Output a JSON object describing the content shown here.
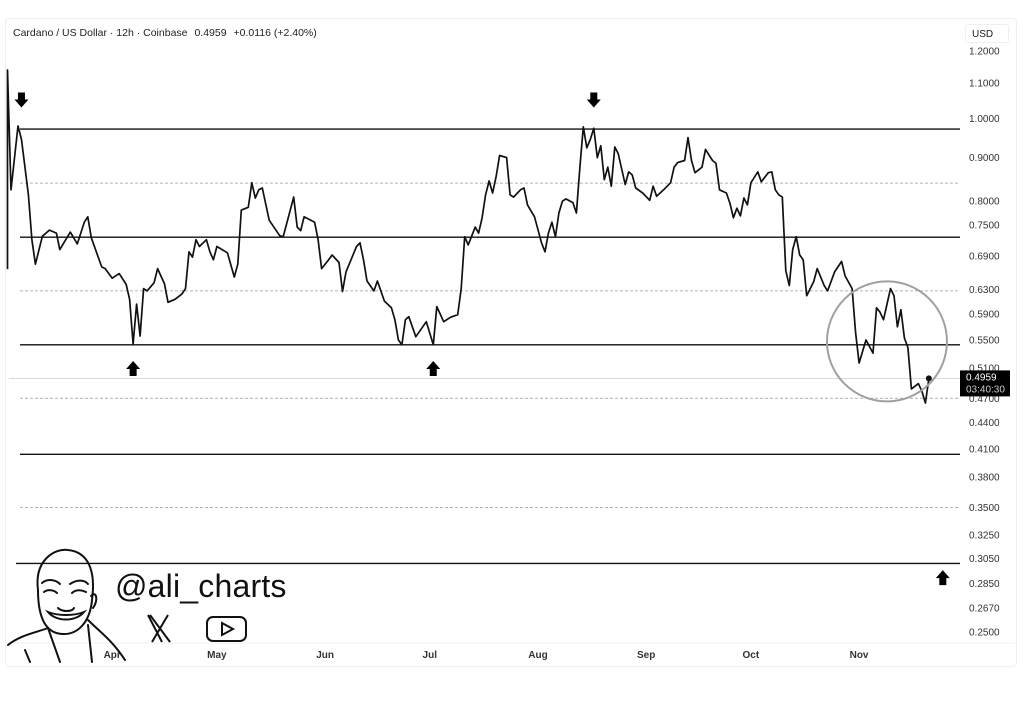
{
  "header": {
    "symbol": "Cardano / US Dollar · 12h · Coinbase",
    "last": "0.4959",
    "change": "+0.0116 (+2.40%)",
    "currency": "USD"
  },
  "price_label": {
    "price": "0.4959",
    "countdown": "03:40:30"
  },
  "watermark": {
    "handle": "@ali_charts",
    "icons": [
      "x-logo-icon",
      "youtube-icon"
    ]
  },
  "colors": {
    "line": "#111111",
    "level": "#111111",
    "dashed": "#9a9a9a",
    "circle": "#a0a0a0",
    "price_box": "#000000"
  },
  "chart_data": {
    "type": "line",
    "title": "",
    "xlabel": "",
    "ylabel": "",
    "yscale": "log",
    "ylim": [
      0.25,
      1.2
    ],
    "grid": false,
    "x_ticks": [
      "Apr",
      "May",
      "Jun",
      "Jul",
      "Aug",
      "Sep",
      "Oct",
      "Nov"
    ],
    "y_ticks": [
      "1.2000",
      "1.1000",
      "1.0000",
      "0.9000",
      "0.8000",
      "0.7500",
      "0.6900",
      "0.6300",
      "0.5900",
      "0.5500",
      "0.5100",
      "0.4700",
      "0.4400",
      "0.4100",
      "0.3800",
      "0.3500",
      "0.3250",
      "0.3050",
      "0.2850",
      "0.2670",
      "0.2500"
    ],
    "solid_levels": [
      0.972,
      0.726,
      0.543,
      0.404,
      0.301
    ],
    "dashed_levels": [
      0.84,
      0.628,
      0.47,
      0.35
    ],
    "last_price": 0.4959,
    "arrows": [
      {
        "date": "Mar 6",
        "price": 1.05,
        "dir": "down"
      },
      {
        "date": "Aug 17",
        "price": 1.05,
        "dir": "down"
      },
      {
        "date": "Apr 7",
        "price": 0.51,
        "dir": "up"
      },
      {
        "date": "Jul 2",
        "price": 0.51,
        "dir": "up"
      },
      {
        "date": "Nov 25",
        "price": 0.29,
        "dir": "up"
      }
    ],
    "highlight_circle": {
      "date": "Nov 9",
      "price": 0.548
    },
    "series": [
      {
        "points": [
          [
            "Mar 2",
            0.666
          ],
          [
            "Mar 2",
            1.14
          ],
          [
            "Mar 3",
            0.825
          ],
          [
            "Mar 5",
            0.98
          ],
          [
            "Mar 6",
            0.945
          ],
          [
            "Mar 8",
            0.814
          ],
          [
            "Mar 9",
            0.721
          ],
          [
            "Mar 10",
            0.675
          ],
          [
            "Mar 12",
            0.728
          ],
          [
            "Mar 14",
            0.74
          ],
          [
            "Mar 16",
            0.734
          ],
          [
            "Mar 17",
            0.702
          ],
          [
            "Mar 20",
            0.736
          ],
          [
            "Mar 22",
            0.713
          ],
          [
            "Mar 24",
            0.756
          ],
          [
            "Mar 25",
            0.767
          ],
          [
            "Mar 26",
            0.725
          ],
          [
            "Mar 29",
            0.67
          ],
          [
            "Mar 30",
            0.667
          ],
          [
            "Apr 1",
            0.65
          ],
          [
            "Apr 3",
            0.658
          ],
          [
            "Apr 5",
            0.639
          ],
          [
            "Apr 6",
            0.614
          ],
          [
            "Apr 7",
            0.544
          ],
          [
            "Apr 8",
            0.606
          ],
          [
            "Apr 9",
            0.556
          ],
          [
            "Apr 10",
            0.632
          ],
          [
            "Apr 11",
            0.628
          ],
          [
            "Apr 13",
            0.642
          ],
          [
            "Apr 14",
            0.667
          ],
          [
            "Apr 16",
            0.64
          ],
          [
            "Apr 17",
            0.609
          ],
          [
            "Apr 19",
            0.614
          ],
          [
            "Apr 21",
            0.623
          ],
          [
            "Apr 22",
            0.632
          ],
          [
            "Apr 23",
            0.698
          ],
          [
            "Apr 24",
            0.688
          ],
          [
            "Apr 25",
            0.721
          ],
          [
            "Apr 26",
            0.708
          ],
          [
            "Apr 28",
            0.721
          ],
          [
            "Apr 29",
            0.698
          ],
          [
            "Apr 30",
            0.683
          ],
          [
            "May 1",
            0.708
          ],
          [
            "May 4",
            0.696
          ],
          [
            "May 6",
            0.652
          ],
          [
            "May 7",
            0.675
          ],
          [
            "May 8",
            0.781
          ],
          [
            "May 10",
            0.787
          ],
          [
            "May 11",
            0.841
          ],
          [
            "May 12",
            0.807
          ],
          [
            "May 13",
            0.825
          ],
          [
            "May 14",
            0.829
          ],
          [
            "May 16",
            0.76
          ],
          [
            "May 19",
            0.729
          ],
          [
            "May 20",
            0.727
          ],
          [
            "May 23",
            0.809
          ],
          [
            "May 24",
            0.746
          ],
          [
            "May 25",
            0.739
          ],
          [
            "May 26",
            0.767
          ],
          [
            "May 29",
            0.756
          ],
          [
            "May 30",
            0.721
          ],
          [
            "May 31",
            0.667
          ],
          [
            "Jun 2",
            0.683
          ],
          [
            "Jun 3",
            0.692
          ],
          [
            "Jun 5",
            0.678
          ],
          [
            "Jun 6",
            0.627
          ],
          [
            "Jun 7",
            0.661
          ],
          [
            "Jun 10",
            0.708
          ],
          [
            "Jun 11",
            0.715
          ],
          [
            "Jun 12",
            0.683
          ],
          [
            "Jun 13",
            0.645
          ],
          [
            "Jun 15",
            0.628
          ],
          [
            "Jun 16",
            0.645
          ],
          [
            "Jun 18",
            0.611
          ],
          [
            "Jun 20",
            0.6
          ],
          [
            "Jun 21",
            0.581
          ],
          [
            "Jun 22",
            0.55
          ],
          [
            "Jun 23",
            0.543
          ],
          [
            "Jun 24",
            0.581
          ],
          [
            "Jun 25",
            0.586
          ],
          [
            "Jun 27",
            0.555
          ],
          [
            "Jun 30",
            0.578
          ],
          [
            "Jul 2",
            0.543
          ],
          [
            "Jul 3",
            0.602
          ],
          [
            "Jul 5",
            0.578
          ],
          [
            "Jul 7",
            0.585
          ],
          [
            "Jul 9",
            0.589
          ],
          [
            "Jul 10",
            0.632
          ],
          [
            "Jul 11",
            0.727
          ],
          [
            "Jul 12",
            0.711
          ],
          [
            "Jul 14",
            0.746
          ],
          [
            "Jul 15",
            0.734
          ],
          [
            "Jul 16",
            0.765
          ],
          [
            "Jul 17",
            0.814
          ],
          [
            "Jul 18",
            0.845
          ],
          [
            "Jul 19",
            0.818
          ],
          [
            "Jul 20",
            0.855
          ],
          [
            "Jul 21",
            0.905
          ],
          [
            "Jul 23",
            0.9
          ],
          [
            "Jul 24",
            0.814
          ],
          [
            "Jul 25",
            0.809
          ],
          [
            "Jul 27",
            0.825
          ],
          [
            "Jul 28",
            0.829
          ],
          [
            "Jul 29",
            0.792
          ],
          [
            "Jul 31",
            0.767
          ],
          [
            "Aug 2",
            0.715
          ],
          [
            "Aug 3",
            0.698
          ],
          [
            "Aug 4",
            0.734
          ],
          [
            "Aug 5",
            0.756
          ],
          [
            "Aug 6",
            0.727
          ],
          [
            "Aug 7",
            0.775
          ],
          [
            "Aug 8",
            0.8
          ],
          [
            "Aug 9",
            0.805
          ],
          [
            "Aug 11",
            0.797
          ],
          [
            "Aug 12",
            0.775
          ],
          [
            "Aug 13",
            0.877
          ],
          [
            "Aug 14",
            0.978
          ],
          [
            "Aug 15",
            0.924
          ],
          [
            "Aug 16",
            0.945
          ],
          [
            "Aug 17",
            0.974
          ],
          [
            "Aug 18",
            0.9
          ],
          [
            "Aug 19",
            0.929
          ],
          [
            "Aug 20",
            0.848
          ],
          [
            "Aug 21",
            0.877
          ],
          [
            "Aug 22",
            0.833
          ],
          [
            "Aug 23",
            0.926
          ],
          [
            "Aug 24",
            0.91
          ],
          [
            "Aug 26",
            0.837
          ],
          [
            "Aug 27",
            0.866
          ],
          [
            "Aug 28",
            0.859
          ],
          [
            "Aug 29",
            0.829
          ],
          [
            "Aug 31",
            0.818
          ],
          [
            "Sep 2",
            0.802
          ],
          [
            "Sep 3",
            0.833
          ],
          [
            "Sep 4",
            0.811
          ],
          [
            "Sep 6",
            0.825
          ],
          [
            "Sep 8",
            0.841
          ],
          [
            "Sep 9",
            0.877
          ],
          [
            "Sep 10",
            0.888
          ],
          [
            "Sep 12",
            0.893
          ],
          [
            "Sep 13",
            0.95
          ],
          [
            "Sep 14",
            0.893
          ],
          [
            "Sep 15",
            0.864
          ],
          [
            "Sep 17",
            0.877
          ],
          [
            "Sep 18",
            0.92
          ],
          [
            "Sep 20",
            0.893
          ],
          [
            "Sep 21",
            0.886
          ],
          [
            "Sep 22",
            0.825
          ],
          [
            "Sep 24",
            0.818
          ],
          [
            "Sep 25",
            0.796
          ],
          [
            "Sep 26",
            0.765
          ],
          [
            "Sep 27",
            0.785
          ],
          [
            "Sep 28",
            0.769
          ],
          [
            "Sep 29",
            0.807
          ],
          [
            "Sep 30",
            0.792
          ],
          [
            "Oct 1",
            0.841
          ],
          [
            "Oct 3",
            0.866
          ],
          [
            "Oct 4",
            0.843
          ],
          [
            "Oct 6",
            0.864
          ],
          [
            "Oct 7",
            0.866
          ],
          [
            "Oct 8",
            0.825
          ],
          [
            "Oct 9",
            0.814
          ],
          [
            "Oct 10",
            0.809
          ],
          [
            "Oct 11",
            0.663
          ],
          [
            "Oct 12",
            0.637
          ],
          [
            "Oct 13",
            0.702
          ],
          [
            "Oct 14",
            0.727
          ],
          [
            "Oct 15",
            0.692
          ],
          [
            "Oct 16",
            0.683
          ],
          [
            "Oct 17",
            0.62
          ],
          [
            "Oct 19",
            0.644
          ],
          [
            "Oct 20",
            0.667
          ],
          [
            "Oct 22",
            0.637
          ],
          [
            "Oct 23",
            0.628
          ],
          [
            "Oct 25",
            0.661
          ],
          [
            "Oct 27",
            0.68
          ],
          [
            "Oct 28",
            0.654
          ],
          [
            "Oct 30",
            0.632
          ],
          [
            "Oct 31",
            0.561
          ],
          [
            "Nov 1",
            0.517
          ],
          [
            "Nov 3",
            0.55
          ],
          [
            "Nov 5",
            0.531
          ],
          [
            "Nov 6",
            0.6
          ],
          [
            "Nov 7",
            0.593
          ],
          [
            "Nov 8",
            0.581
          ],
          [
            "Nov 10",
            0.632
          ],
          [
            "Nov 11",
            0.62
          ],
          [
            "Nov 12",
            0.57
          ],
          [
            "Nov 13",
            0.597
          ],
          [
            "Nov 14",
            0.553
          ],
          [
            "Nov 15",
            0.539
          ],
          [
            "Nov 16",
            0.482
          ],
          [
            "Nov 18",
            0.489
          ],
          [
            "Nov 19",
            0.479
          ],
          [
            "Nov 20",
            0.464
          ],
          [
            "Nov 21",
            0.4959
          ]
        ]
      }
    ]
  }
}
